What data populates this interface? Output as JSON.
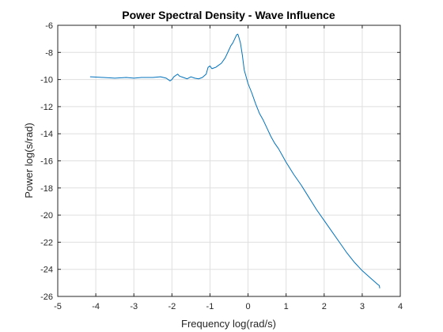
{
  "chart_data": {
    "type": "line",
    "title": "Power Spectral Density - Wave Influence",
    "xlabel": "Frequency log(rad/s)",
    "ylabel": "Power log(s/rad)",
    "xlim": [
      -5,
      4
    ],
    "ylim": [
      -26,
      -6
    ],
    "xticks": [
      -5,
      -4,
      -3,
      -2,
      -1,
      0,
      1,
      2,
      3,
      4
    ],
    "yticks": [
      -26,
      -24,
      -22,
      -20,
      -18,
      -16,
      -14,
      -12,
      -10,
      -8,
      -6
    ],
    "grid": true,
    "legend": "none",
    "colors": {
      "series": "#0072bd",
      "axis": "#262626",
      "grid": "#dfdfdf"
    },
    "series": [
      {
        "x": [
          -4.15,
          -3.8,
          -3.5,
          -3.2,
          -3.0,
          -2.8,
          -2.5,
          -2.3,
          -2.15,
          -2.05,
          -2.0,
          -1.95,
          -1.85,
          -1.8,
          -1.7,
          -1.6,
          -1.5,
          -1.4,
          -1.3,
          -1.2,
          -1.1,
          -1.05,
          -1.0,
          -0.95,
          -0.9,
          -0.85,
          -0.8,
          -0.7,
          -0.6,
          -0.5,
          -0.45,
          -0.4,
          -0.35,
          -0.3,
          -0.27,
          -0.25,
          -0.2,
          -0.15,
          -0.1,
          -0.05,
          0.0,
          0.1,
          0.2,
          0.3,
          0.4,
          0.5,
          0.6,
          0.7,
          0.8,
          0.9,
          1.0,
          1.2,
          1.4,
          1.6,
          1.8,
          2.0,
          2.2,
          2.4,
          2.6,
          2.8,
          3.0,
          3.2,
          3.4,
          3.45,
          3.46
        ],
        "y": [
          -9.8,
          -9.85,
          -9.9,
          -9.85,
          -9.9,
          -9.85,
          -9.85,
          -9.8,
          -9.9,
          -10.1,
          -10.0,
          -9.8,
          -9.6,
          -9.75,
          -9.85,
          -9.95,
          -9.8,
          -9.9,
          -9.95,
          -9.85,
          -9.6,
          -9.1,
          -9.0,
          -9.2,
          -9.15,
          -9.1,
          -9.0,
          -8.8,
          -8.4,
          -7.8,
          -7.5,
          -7.3,
          -7.0,
          -6.7,
          -6.65,
          -6.8,
          -7.3,
          -8.2,
          -9.3,
          -9.8,
          -10.3,
          -11.0,
          -11.8,
          -12.5,
          -13.0,
          -13.6,
          -14.2,
          -14.7,
          -15.1,
          -15.6,
          -16.1,
          -17.0,
          -17.8,
          -18.7,
          -19.6,
          -20.4,
          -21.2,
          -22.0,
          -22.8,
          -23.5,
          -24.1,
          -24.6,
          -25.1,
          -25.2,
          -25.4
        ]
      }
    ]
  }
}
